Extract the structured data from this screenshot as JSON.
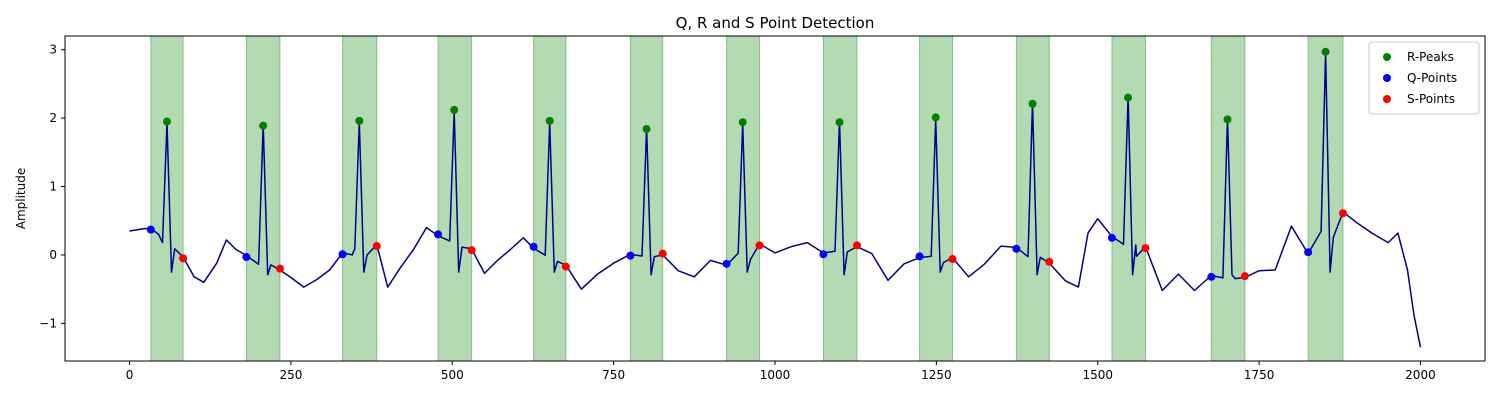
{
  "chart_data": {
    "type": "line",
    "title": "Q, R and S Point Detection",
    "xlabel": "",
    "ylabel": "Amplitude",
    "xlim": [
      -100,
      2100
    ],
    "ylim": [
      -1.55,
      3.2
    ],
    "x_ticks": [
      0,
      250,
      500,
      750,
      1000,
      1250,
      1500,
      1750,
      2000
    ],
    "y_ticks": [
      -1,
      0,
      1,
      2,
      3
    ],
    "y_tick_labels": [
      "−1",
      "0",
      "1",
      "2",
      "3"
    ],
    "grid": false,
    "legend_position": "top-right",
    "colors": {
      "signal": "#00008b",
      "r_peaks": "#008000",
      "q_points": "#0000ff",
      "s_points": "#ff0000",
      "qrs_span": "#4ca64c"
    },
    "legend": [
      {
        "label": "R-Peaks",
        "color": "#008000"
      },
      {
        "label": "Q-Points",
        "color": "#0000ff"
      },
      {
        "label": "S-Points",
        "color": "#ff0000"
      }
    ],
    "qrs_spans": [
      [
        33,
        83
      ],
      [
        181,
        233
      ],
      [
        330,
        383
      ],
      [
        478,
        530
      ],
      [
        626,
        676
      ],
      [
        776,
        826
      ],
      [
        925,
        976
      ],
      [
        1075,
        1127
      ],
      [
        1224,
        1275
      ],
      [
        1374,
        1425
      ],
      [
        1522,
        1574
      ],
      [
        1676,
        1728
      ],
      [
        1826,
        1880
      ]
    ],
    "r_peaks": {
      "name": "R-Peaks",
      "x": [
        58,
        207,
        356,
        503,
        651,
        801,
        950,
        1100,
        1249,
        1399,
        1547,
        1701,
        1853
      ],
      "y": [
        1.95,
        1.89,
        1.96,
        2.12,
        1.96,
        1.84,
        1.94,
        1.94,
        2.01,
        2.21,
        2.3,
        1.98,
        2.97
      ]
    },
    "q_points": {
      "name": "Q-Points",
      "x": [
        33,
        181,
        330,
        478,
        626,
        776,
        925,
        1075,
        1224,
        1374,
        1522,
        1676,
        1826
      ],
      "y": [
        0.37,
        -0.03,
        0.01,
        0.3,
        0.12,
        -0.01,
        -0.13,
        0.01,
        -0.02,
        0.09,
        0.25,
        -0.32,
        0.04
      ]
    },
    "s_points": {
      "name": "S-Points",
      "x": [
        83,
        233,
        383,
        530,
        676,
        826,
        976,
        1127,
        1275,
        1425,
        1574,
        1728,
        1880
      ],
      "y": [
        -0.05,
        -0.2,
        0.13,
        0.07,
        -0.17,
        0.02,
        0.14,
        0.14,
        -0.06,
        -0.1,
        0.1,
        -0.31,
        0.61
      ]
    },
    "signal_base": {
      "x": [
        0,
        20,
        33,
        45,
        60,
        83,
        100,
        115,
        135,
        150,
        165,
        181,
        200,
        215,
        233,
        250,
        270,
        290,
        310,
        330,
        345,
        360,
        383,
        400,
        420,
        440,
        460,
        478,
        495,
        510,
        530,
        550,
        570,
        590,
        610,
        626,
        645,
        660,
        676,
        700,
        725,
        750,
        776,
        795,
        810,
        826,
        850,
        875,
        900,
        925,
        945,
        960,
        976,
        1000,
        1025,
        1050,
        1075,
        1095,
        1110,
        1127,
        1150,
        1175,
        1200,
        1224,
        1245,
        1260,
        1275,
        1300,
        1325,
        1350,
        1374,
        1395,
        1410,
        1425,
        1450,
        1470,
        1485,
        1500,
        1522,
        1545,
        1560,
        1574,
        1600,
        1625,
        1650,
        1676,
        1695,
        1712,
        1728,
        1750,
        1775,
        1800,
        1826,
        1848,
        1865,
        1880,
        1900,
        1925,
        1950,
        1965,
        1980,
        1990,
        2000
      ],
      "y": [
        0.33,
        0.4,
        0.37,
        0.32,
        0.02,
        -0.05,
        -0.3,
        -0.42,
        -0.1,
        0.2,
        0.1,
        -0.03,
        -0.05,
        -0.3,
        -0.2,
        -0.35,
        -0.45,
        -0.38,
        -0.2,
        0.01,
        0.02,
        -0.05,
        0.13,
        -0.45,
        -0.2,
        0.1,
        0.38,
        0.3,
        0.2,
        0.0,
        0.07,
        -0.25,
        -0.1,
        0.1,
        0.23,
        0.12,
        0.05,
        -0.3,
        -0.17,
        -0.48,
        -0.3,
        -0.1,
        -0.01,
        -0.05,
        -0.3,
        0.02,
        -0.25,
        -0.3,
        -0.1,
        -0.13,
        -0.08,
        0.0,
        0.14,
        0.05,
        0.1,
        0.2,
        0.01,
        -0.02,
        -0.1,
        0.14,
        0.0,
        -0.35,
        -0.15,
        -0.02,
        -0.05,
        -0.2,
        -0.06,
        -0.3,
        -0.15,
        0.15,
        0.09,
        0.05,
        -0.25,
        -0.1,
        -0.4,
        -0.45,
        0.3,
        0.55,
        0.25,
        0.1,
        0.0,
        0.1,
        -0.5,
        -0.3,
        -0.5,
        -0.32,
        -0.1,
        -0.5,
        -0.31,
        -0.25,
        -0.2,
        0.4,
        0.04,
        -0.05,
        0.3,
        0.61,
        0.5,
        0.3,
        0.2,
        0.3,
        -0.2,
        -0.9,
        -1.33
      ]
    }
  }
}
